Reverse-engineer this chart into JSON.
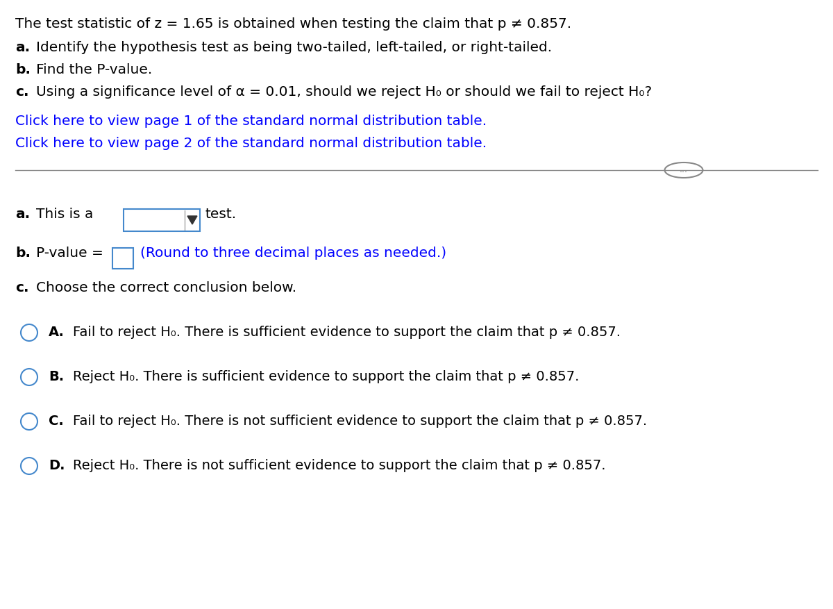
{
  "bg_color": "#ffffff",
  "line1": "The test statistic of z = 1.65 is obtained when testing the claim that p ≠ 0.857.",
  "line2_rest": "Identify the hypothesis test as being two-tailed, left-tailed, or right-tailed.",
  "line3_rest": "Find the P-value.",
  "line4_rest": "Using a significance level of α = 0.01, should we reject H₀ or should we fail to reject H₀?",
  "link1": "Click here to view page 1 of the standard normal distribution table.",
  "link2": "Click here to view page 2 of the standard normal distribution table.",
  "link_color": "#0000ff",
  "part_a_text1": "This is a",
  "part_a_text2": "test.",
  "part_b_text1": "P-value =",
  "part_b_text2": "(Round to three decimal places as needed.)",
  "part_c_text": "Choose the correct conclusion below.",
  "option_A_text": "Fail to reject H₀. There is sufficient evidence to support the claim that p ≠ 0.857.",
  "option_B_text": "Reject H₀. There is sufficient evidence to support the claim that p ≠ 0.857.",
  "option_C_text": "Fail to reject H₀. There is not sufficient evidence to support the claim that p ≠ 0.857.",
  "option_D_text": "Reject H₀. There is not sufficient evidence to support the claim that p ≠ 0.857.",
  "radio_color": "#4488cc",
  "divider_color": "#888888",
  "box_color": "#4488cc",
  "text_color": "#000000",
  "font_size_main": 14.5,
  "font_size_options": 14.0
}
